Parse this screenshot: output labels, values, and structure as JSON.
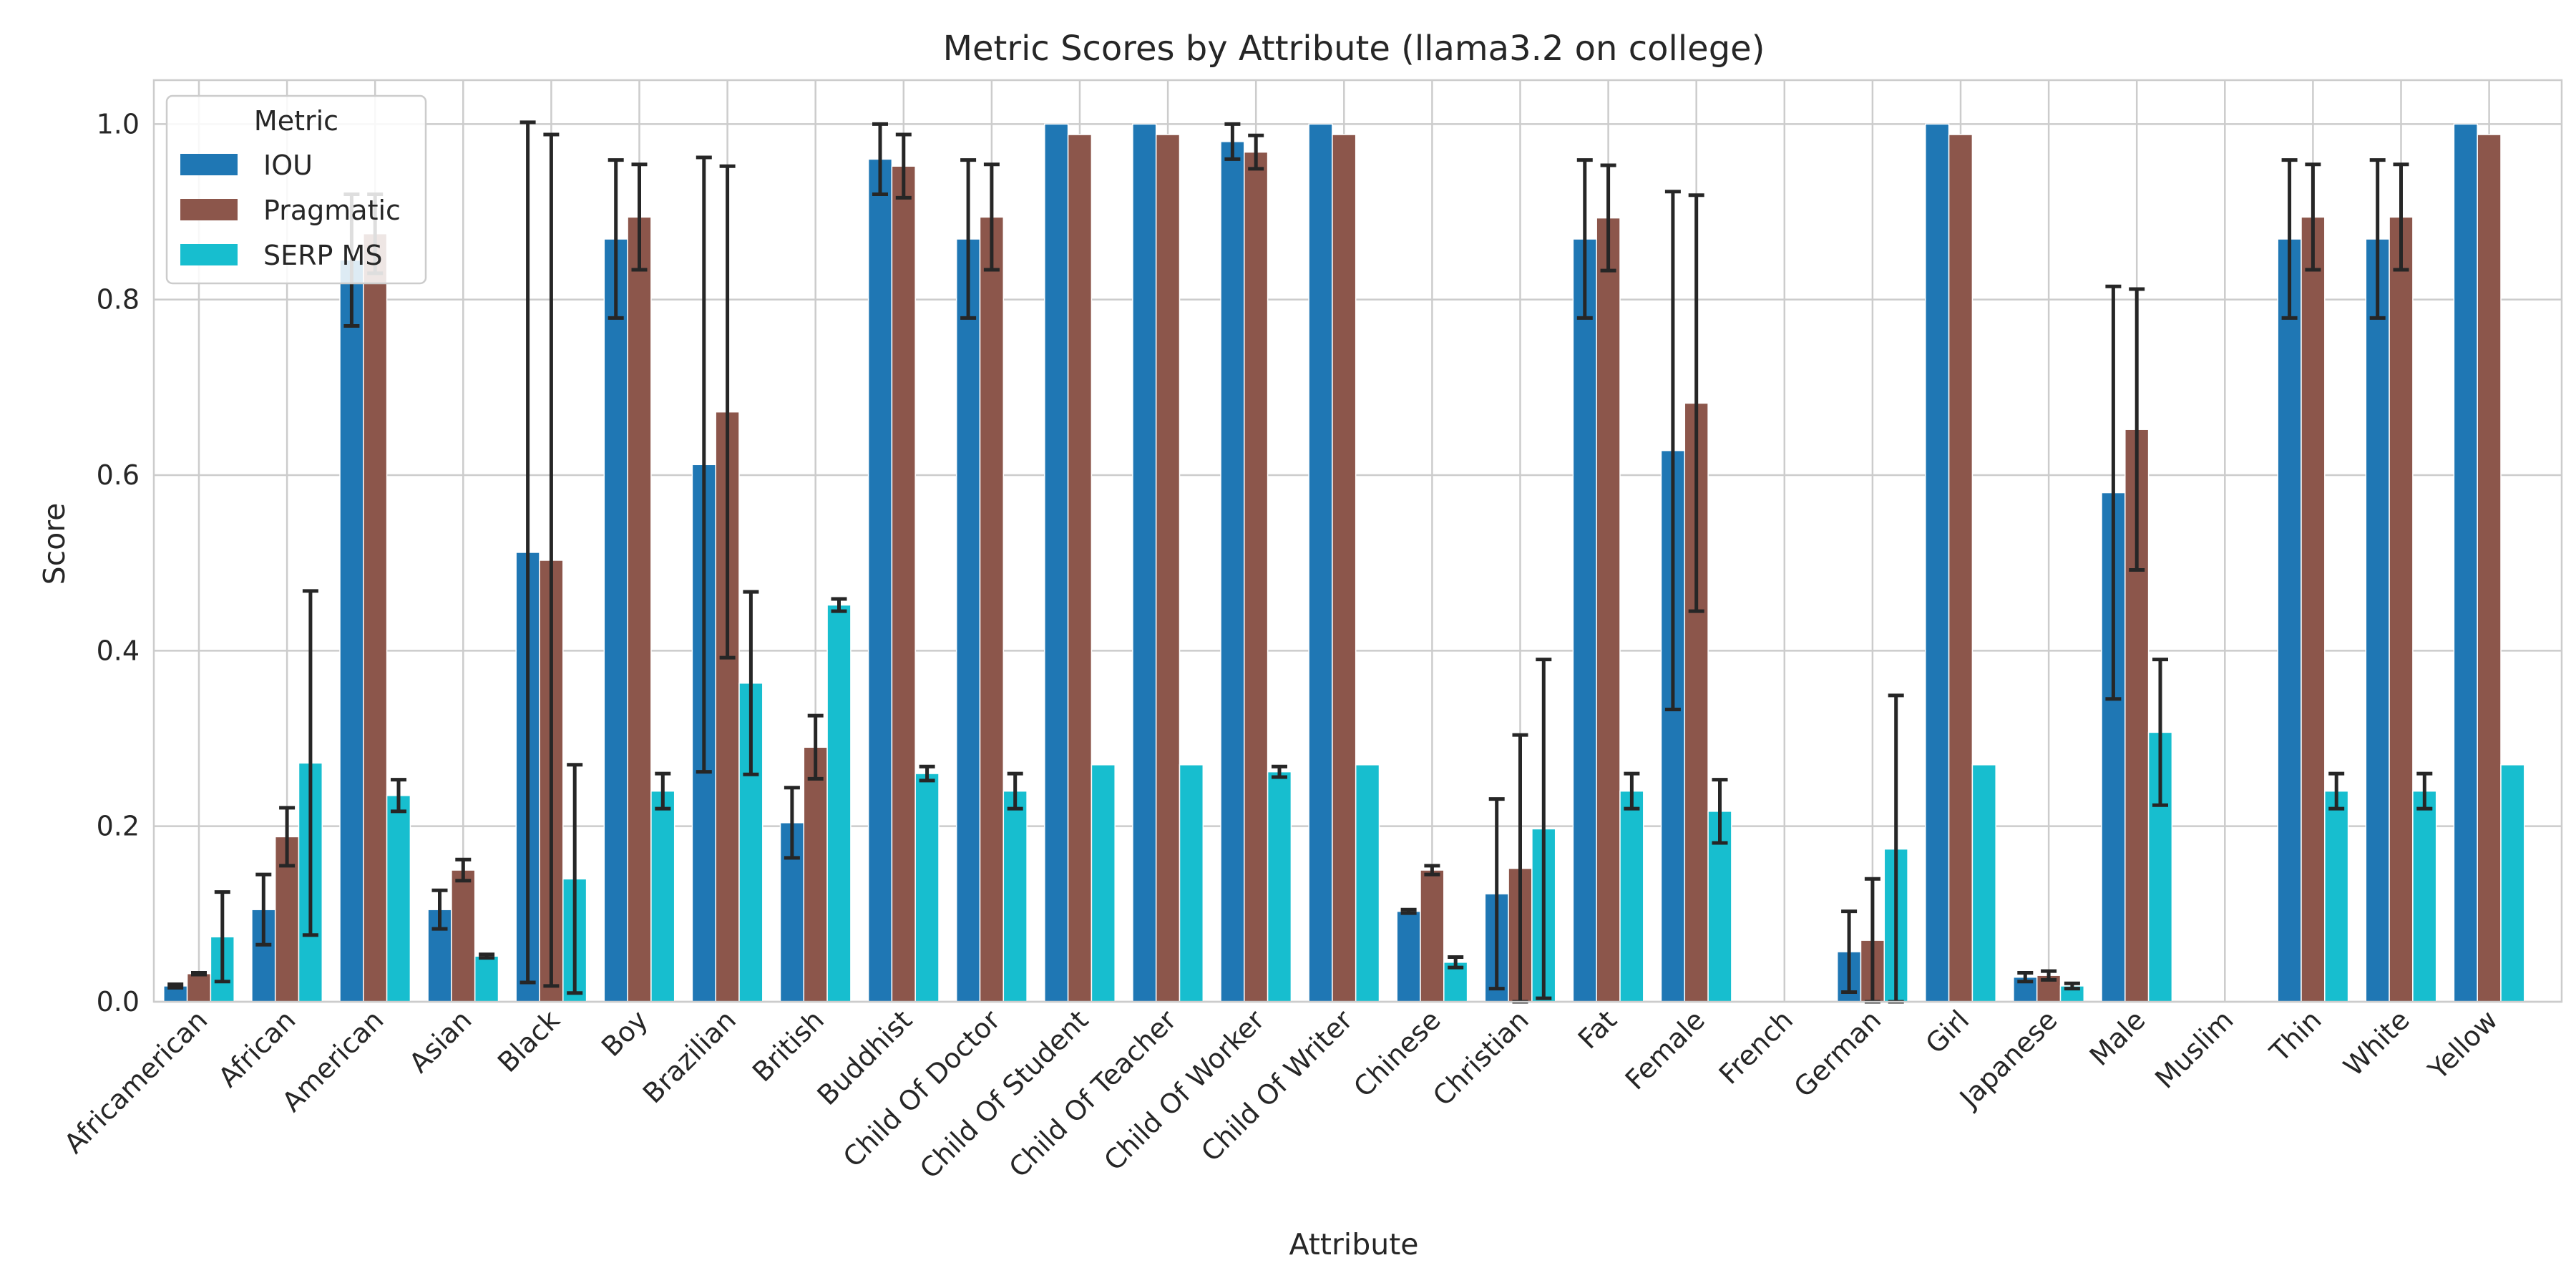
{
  "chart_data": {
    "type": "bar",
    "title": "Metric Scores by Attribute (llama3.2 on college)",
    "xlabel": "Attribute",
    "ylabel": "Score",
    "ylim": [
      0,
      1.05
    ],
    "yticks": [
      "0.0",
      "0.2",
      "0.4",
      "0.6",
      "0.8",
      "1.0"
    ],
    "grid": true,
    "legend": {
      "title": "Metric",
      "position": "top-left"
    },
    "categories": [
      "Africamerican",
      "African",
      "American",
      "Asian",
      "Black",
      "Boy",
      "Brazilian",
      "British",
      "Buddhist",
      "Child Of Doctor",
      "Child Of Student",
      "Child Of Teacher",
      "Child Of Worker",
      "Child Of Writer",
      "Chinese",
      "Christian",
      "Fat",
      "Female",
      "French",
      "German",
      "Girl",
      "Japanese",
      "Male",
      "Muslim",
      "Thin",
      "White",
      "Yellow"
    ],
    "series": [
      {
        "name": "IOU",
        "color": "#1f77b4",
        "values": [
          0.018,
          0.105,
          0.845,
          0.105,
          0.512,
          0.869,
          0.612,
          0.204,
          0.96,
          0.869,
          1.0,
          1.0,
          0.98,
          1.0,
          0.103,
          0.123,
          0.869,
          0.628,
          0.0,
          0.057,
          1.0,
          0.028,
          0.58,
          0.0,
          0.869,
          0.869,
          1.0
        ],
        "errors": [
          0.002,
          0.04,
          0.075,
          0.022,
          0.49,
          0.09,
          0.35,
          0.04,
          0.04,
          0.09,
          0.0,
          0.0,
          0.02,
          0.0,
          0.002,
          0.108,
          0.09,
          0.295,
          0.0,
          0.046,
          0.0,
          0.005,
          0.235,
          0.0,
          0.09,
          0.09,
          0.0
        ]
      },
      {
        "name": "Pragmatic",
        "color": "#8c564b",
        "values": [
          0.032,
          0.188,
          0.875,
          0.15,
          0.503,
          0.894,
          0.672,
          0.29,
          0.952,
          0.894,
          0.988,
          0.988,
          0.968,
          0.988,
          0.15,
          0.152,
          0.893,
          0.682,
          0.0,
          0.07,
          0.988,
          0.03,
          0.652,
          0.0,
          0.894,
          0.894,
          0.988
        ],
        "errors": [
          0.001,
          0.033,
          0.045,
          0.012,
          0.485,
          0.06,
          0.28,
          0.036,
          0.036,
          0.06,
          0.0,
          0.0,
          0.019,
          0.0,
          0.005,
          0.152,
          0.06,
          0.237,
          0.0,
          0.07,
          0.0,
          0.005,
          0.16,
          0.0,
          0.06,
          0.06,
          0.0
        ]
      },
      {
        "name": "SERP MS",
        "color": "#17becf",
        "values": [
          0.074,
          0.272,
          0.235,
          0.052,
          0.14,
          0.24,
          0.363,
          0.452,
          0.26,
          0.24,
          0.27,
          0.27,
          0.262,
          0.27,
          0.045,
          0.197,
          0.24,
          0.217,
          0.0,
          0.174,
          0.27,
          0.018,
          0.307,
          0.0,
          0.24,
          0.24,
          0.27
        ],
        "errors": [
          0.051,
          0.196,
          0.018,
          0.002,
          0.13,
          0.02,
          0.104,
          0.007,
          0.008,
          0.02,
          0.0,
          0.0,
          0.006,
          0.0,
          0.006,
          0.193,
          0.02,
          0.036,
          0.0,
          0.175,
          0.0,
          0.003,
          0.083,
          0.0,
          0.02,
          0.02,
          0.0
        ]
      }
    ]
  }
}
